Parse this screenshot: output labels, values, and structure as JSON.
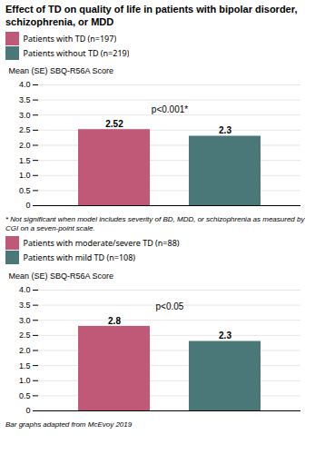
{
  "chart_data": [
    {
      "type": "bar",
      "title": "Effect of TD on quality of life in patients with bipolar disorder, schizophrenia, or MDD",
      "categories": [
        "Patients with TD (n=197)",
        "Patients without TD (n=219)"
      ],
      "values": [
        2.52,
        2.3
      ],
      "colors": [
        "#c05878",
        "#4a7878"
      ],
      "ylabel": "Mean (SE) SBQ-R56A Score",
      "ylim": [
        0,
        4
      ],
      "yticks": [
        0,
        0.5,
        {
          "value": 1,
          "label": "1.0"
        },
        1.5,
        {
          "value": 2,
          "label": "2.0"
        },
        2.5,
        {
          "value": 3,
          "label": "3.0"
        },
        3.5,
        {
          "value": 4,
          "label": "4.0"
        }
      ],
      "grid": true,
      "legend": "top",
      "tick_labels": "y",
      "data_labels": true,
      "annotations": [
        "p<0.001*"
      ],
      "caption": "* Not significant when model includes severity of BD, MDD, or schizophrenia as measured by CGI on a seven-point scale."
    },
    {
      "type": "bar",
      "categories": [
        "Patients with moderate/severe TD (n=88)",
        "Patients with mild TD (n=108)"
      ],
      "values": [
        2.8,
        2.3
      ],
      "colors": [
        "#c05878",
        "#4a7878"
      ],
      "ylabel": "Mean (SE) SBQ-R56A Score",
      "ylim": [
        0,
        4
      ],
      "yticks": [
        0,
        0.5,
        {
          "value": 1,
          "label": "1.0"
        },
        1.5,
        {
          "value": 2,
          "label": "2.0"
        },
        2.5,
        {
          "value": 3,
          "label": "3.0"
        },
        3.5,
        {
          "value": 4,
          "label": "4.0"
        }
      ],
      "grid": true,
      "legend": "top",
      "tick_labels": "y",
      "data_labels": true,
      "annotations": [
        "p<0.05"
      ],
      "caption": "Bar graphs adapted from McEvoy 2019"
    }
  ]
}
